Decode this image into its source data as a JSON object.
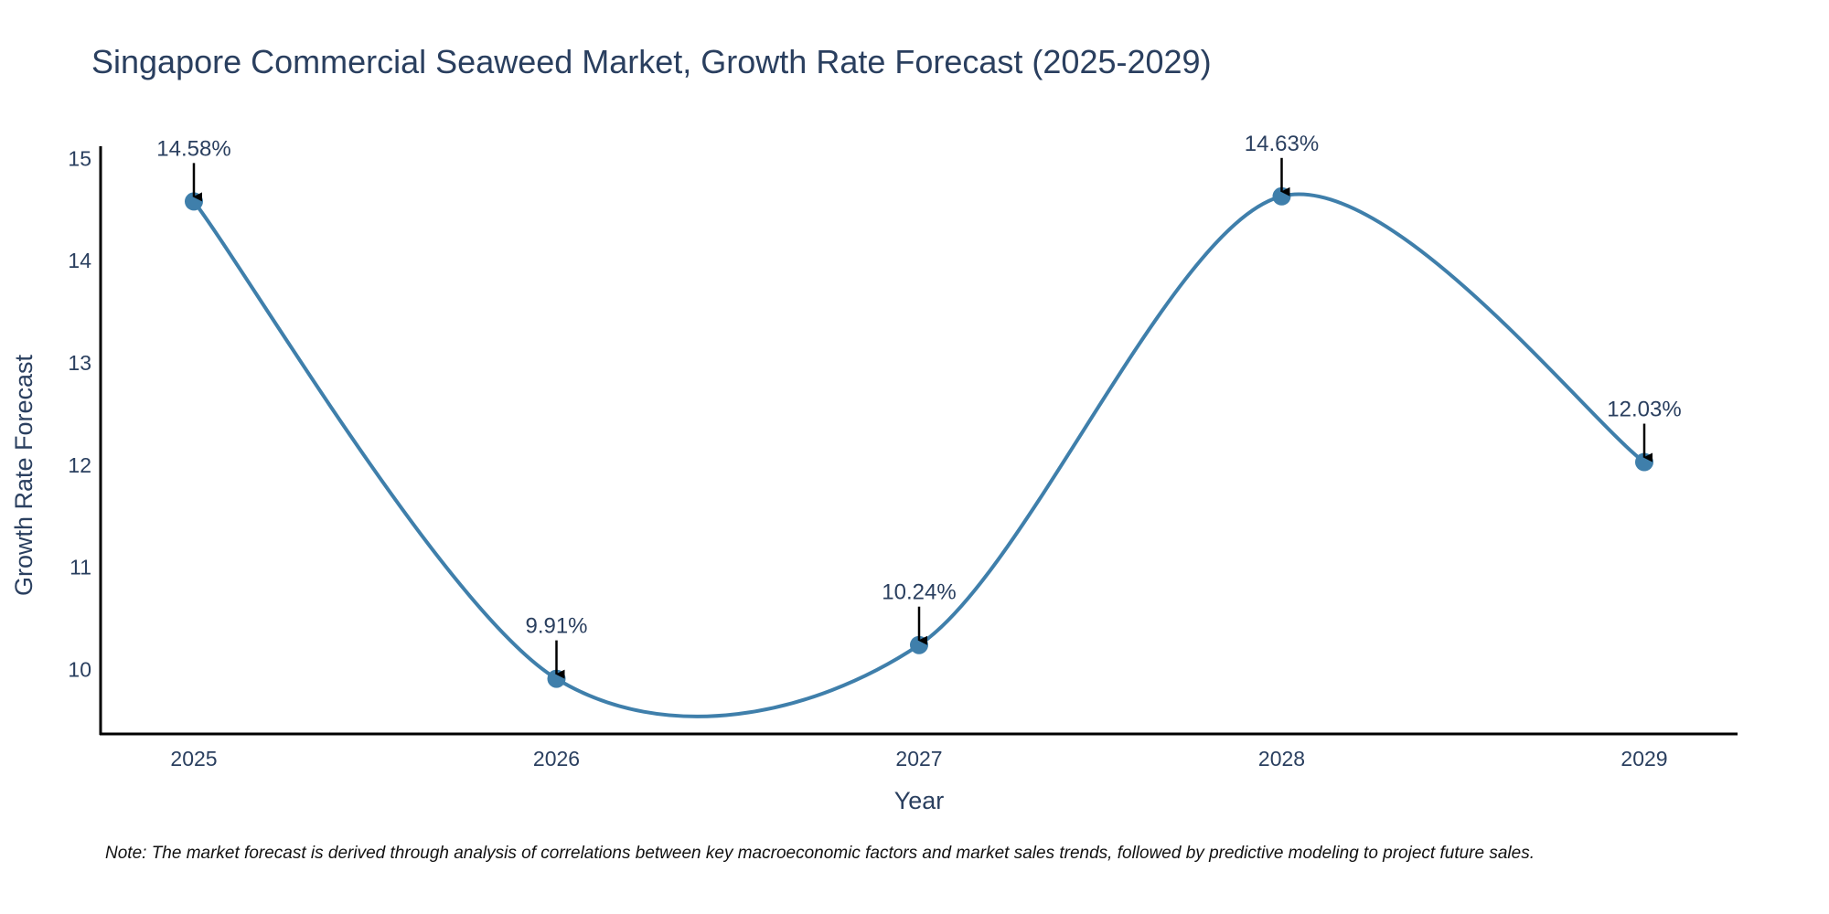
{
  "chart_data": {
    "type": "line",
    "title": "Singapore Commercial Seaweed Market, Growth Rate Forecast (2025-2029)",
    "xlabel": "Year",
    "ylabel": "Growth Rate Forecast",
    "categories": [
      "2025",
      "2026",
      "2027",
      "2028",
      "2029"
    ],
    "values": [
      14.58,
      9.91,
      10.24,
      14.63,
      12.03
    ],
    "data_labels": [
      "14.58%",
      "9.91%",
      "10.24%",
      "14.63%",
      "12.03%"
    ],
    "ylim": [
      9.37,
      15.12
    ],
    "yticks": [
      10,
      11,
      12,
      13,
      14,
      15
    ],
    "line_shape": "spline",
    "grid": false,
    "colors": {
      "line": "#3f7fab",
      "marker": "#3f7fab",
      "arrow": "#000000",
      "text": "#2a3f5f",
      "axis": "#000000"
    },
    "note": "Note: The market forecast is derived through analysis of correlations between key macroeconomic factors and market sales trends, followed by predictive modeling to project future sales."
  }
}
